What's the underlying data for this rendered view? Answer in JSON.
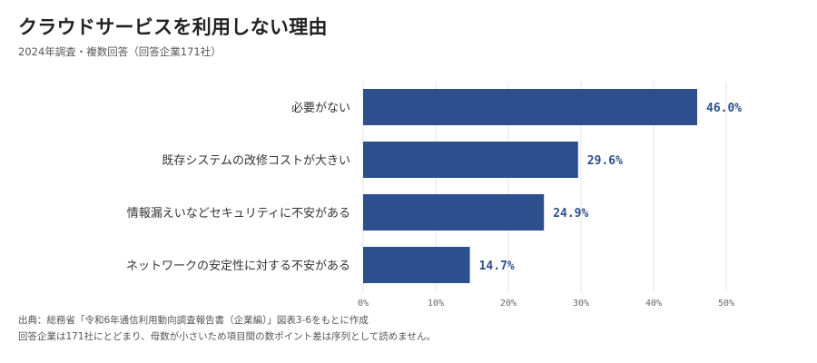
{
  "title": "クラウドサービスを利用しない理由",
  "subtitle": "2024年調査・複数回答（回答企業171社）",
  "chart_data": {
    "type": "bar",
    "orientation": "horizontal",
    "categories": [
      "必要がない",
      "既存システムの改修コストが大きい",
      "情報漏えいなどセキュリティに不安がある",
      "ネットワークの安定性に対する不安がある"
    ],
    "values": [
      46.0,
      29.6,
      24.9,
      14.7
    ],
    "value_labels": [
      "46.0%",
      "29.6%",
      "24.9%",
      "14.7%"
    ],
    "xlim": [
      0,
      50
    ],
    "xticks": [
      "0%",
      "10%",
      "20%",
      "30%",
      "40%",
      "50%"
    ],
    "grid": true,
    "bar_color": "#2d4f8e",
    "label_color": "#2d4f8e"
  },
  "footnotes": {
    "line1": "出典：総務省「令和6年通信利用動向調査報告書（企業編）」図表3-6をもとに作成",
    "line2": "回答企業は171社にとどまり、母数が小さいため項目間の数ポイント差は序列として読めません。"
  }
}
